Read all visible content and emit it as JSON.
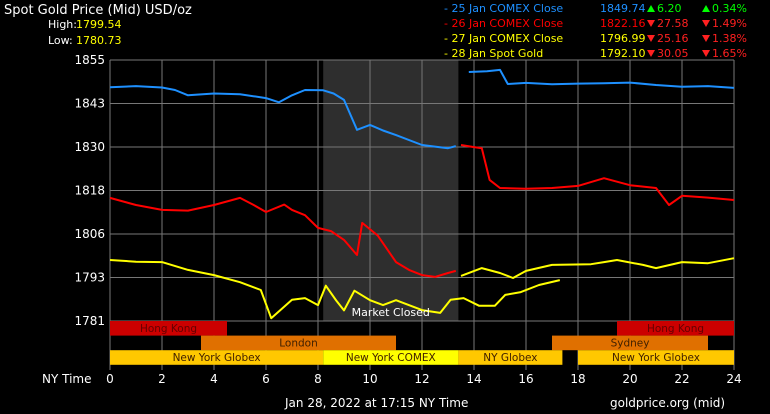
{
  "header": {
    "title": "Spot Gold Price (Mid) USD/oz",
    "high_label": "High:",
    "high_value": "1799.54",
    "low_label": "Low:",
    "low_value": "1780.73"
  },
  "legend": [
    {
      "label": "- 25 Jan COMEX Close",
      "price": "1849.74",
      "change": "6.20",
      "pct": "0.34%",
      "direction": "up",
      "color": "#1e90ff"
    },
    {
      "label": "- 26 Jan COMEX Close",
      "price": "1822.16",
      "change": "27.58",
      "pct": "1.49%",
      "direction": "down",
      "color": "#ff0000"
    },
    {
      "label": "- 27 Jan COMEX Close",
      "price": "1796.99",
      "change": "25.16",
      "pct": "1.38%",
      "direction": "down",
      "color": "#ffff00"
    },
    {
      "label": "- 28 Jan Spot Gold",
      "price": "1792.10",
      "change": "30.05",
      "pct": "1.65%",
      "direction": "down",
      "color": "#ffff00"
    }
  ],
  "footer": {
    "timestamp": "Jan 28, 2022 at 17:15 NY Time",
    "source": "goldprice.org (mid)"
  },
  "chart_data": {
    "type": "line",
    "xlabel": "NY Time",
    "xlim": [
      0,
      24
    ],
    "ylim": [
      1781,
      1855
    ],
    "x_ticks": [
      "0",
      "2",
      "4",
      "6",
      "8",
      "10",
      "12",
      "14",
      "16",
      "18",
      "20",
      "22",
      "24"
    ],
    "y_ticks": [
      "1855",
      "1843",
      "1830",
      "1818",
      "1806",
      "1793",
      "1781"
    ],
    "grid": true,
    "closed_label": "Market Closed",
    "closed_range": [
      8.2,
      13.4
    ],
    "series": [
      {
        "name": "25 Jan COMEX Close",
        "color": "#1e90ff",
        "segments": [
          [
            [
              0,
              1847.3
            ],
            [
              1,
              1847.6
            ],
            [
              2,
              1847.2
            ],
            [
              2.5,
              1846.5
            ],
            [
              3,
              1845
            ],
            [
              4,
              1845.5
            ],
            [
              5,
              1845.3
            ],
            [
              6,
              1844.2
            ],
            [
              6.5,
              1843
            ],
            [
              7,
              1845
            ],
            [
              7.5,
              1846.5
            ],
            [
              8.2,
              1846.4
            ],
            [
              8.6,
              1845.5
            ],
            [
              9,
              1843.7
            ],
            [
              9.5,
              1835.2
            ],
            [
              10,
              1836.6
            ],
            [
              10.5,
              1835
            ],
            [
              11,
              1833.7
            ],
            [
              12,
              1830.9
            ],
            [
              13,
              1830
            ],
            [
              13.3,
              1830.6
            ]
          ],
          [
            [
              13.8,
              1851.6
            ],
            [
              14.5,
              1851.8
            ],
            [
              15,
              1852.2
            ],
            [
              15.3,
              1848.2
            ],
            [
              16,
              1848.5
            ],
            [
              17,
              1848.1
            ],
            [
              18,
              1848.3
            ],
            [
              19,
              1848.4
            ],
            [
              20,
              1848.6
            ],
            [
              21,
              1847.9
            ],
            [
              22,
              1847.4
            ],
            [
              23,
              1847.6
            ],
            [
              24,
              1847.1
            ]
          ]
        ]
      },
      {
        "name": "26 Jan COMEX Close",
        "color": "#ff0000",
        "segments": [
          [
            [
              0,
              1815.9
            ],
            [
              1,
              1813.9
            ],
            [
              2,
              1812.5
            ],
            [
              3,
              1812.3
            ],
            [
              4,
              1813.9
            ],
            [
              5,
              1815.9
            ],
            [
              5.5,
              1814
            ],
            [
              6,
              1811.9
            ],
            [
              6.7,
              1814
            ],
            [
              7,
              1812.5
            ],
            [
              7.5,
              1811
            ],
            [
              8,
              1807.4
            ],
            [
              8.5,
              1806.5
            ],
            [
              9,
              1804
            ],
            [
              9.5,
              1799.7
            ],
            [
              9.7,
              1808.8
            ],
            [
              10.3,
              1805.2
            ],
            [
              11,
              1797.7
            ],
            [
              11.5,
              1795.5
            ],
            [
              12,
              1794
            ],
            [
              12.5,
              1793.5
            ],
            [
              13,
              1794.6
            ],
            [
              13.3,
              1795.2
            ]
          ],
          [
            [
              13.5,
              1830.9
            ],
            [
              14,
              1830.3
            ],
            [
              14.3,
              1830
            ],
            [
              14.6,
              1821
            ],
            [
              15,
              1818.7
            ],
            [
              16,
              1818.5
            ],
            [
              17,
              1818.7
            ],
            [
              18,
              1819.3
            ],
            [
              19,
              1821.5
            ],
            [
              20,
              1819.5
            ],
            [
              21,
              1818.7
            ],
            [
              21.5,
              1813.9
            ],
            [
              22,
              1816.5
            ],
            [
              23,
              1816
            ],
            [
              24,
              1815.3
            ]
          ]
        ]
      },
      {
        "name": "27 Jan COMEX Close",
        "color": "#ffff00",
        "segments": [
          [
            [
              13.5,
              1793.8
            ],
            [
              14.3,
              1796
            ],
            [
              15,
              1794.6
            ],
            [
              15.5,
              1793.2
            ],
            [
              16,
              1795.2
            ],
            [
              17,
              1796.9
            ],
            [
              18.5,
              1797.1
            ],
            [
              19,
              1797.7
            ],
            [
              19.5,
              1798.3
            ],
            [
              20.5,
              1796.9
            ],
            [
              21,
              1796
            ],
            [
              22,
              1797.7
            ],
            [
              23,
              1797.4
            ],
            [
              24,
              1798.8
            ]
          ]
        ]
      },
      {
        "name": "28 Jan Spot Gold",
        "color": "#ffff00",
        "segments": [
          [
            [
              0,
              1798.3
            ],
            [
              1,
              1797.8
            ],
            [
              2,
              1797.7
            ],
            [
              3,
              1795.5
            ],
            [
              4,
              1794
            ],
            [
              5,
              1792
            ],
            [
              5.8,
              1789.8
            ],
            [
              6.2,
              1781.8
            ],
            [
              7,
              1787
            ],
            [
              7.5,
              1787.5
            ],
            [
              8,
              1785.5
            ],
            [
              8.3,
              1791
            ],
            [
              8.7,
              1786.8
            ],
            [
              9,
              1784
            ],
            [
              9.4,
              1789.6
            ],
            [
              10,
              1786.9
            ],
            [
              10.5,
              1785.5
            ],
            [
              11,
              1786.9
            ],
            [
              12,
              1784.1
            ],
            [
              12.7,
              1783.3
            ],
            [
              13.1,
              1787
            ],
            [
              13.6,
              1787.5
            ],
            [
              14.2,
              1785.3
            ],
            [
              14.8,
              1785.3
            ],
            [
              15.2,
              1788.4
            ],
            [
              15.8,
              1789.2
            ],
            [
              16.5,
              1791.2
            ],
            [
              17.3,
              1792.6
            ]
          ]
        ]
      }
    ],
    "sessions": [
      {
        "label": "Hong Kong",
        "row": 0,
        "start": 0,
        "end": 4.5,
        "color": "#cc0000"
      },
      {
        "label": "Hong Kong",
        "row": 0,
        "start": 19.5,
        "end": 24,
        "color": "#cc0000"
      },
      {
        "label": "London",
        "row": 1,
        "start": 3.5,
        "end": 11,
        "color": "#e07000"
      },
      {
        "label": "Sydney",
        "row": 1,
        "start": 17,
        "end": 23,
        "color": "#e07000"
      },
      {
        "label": "New York Globex",
        "row": 2,
        "start": 0,
        "end": 8.2,
        "color": "#ffc800"
      },
      {
        "label": "New York COMEX",
        "row": 2,
        "start": 8.2,
        "end": 13.4,
        "color": "#ffff00"
      },
      {
        "label": "NY Globex",
        "row": 2,
        "start": 13.4,
        "end": 17.4,
        "color": "#ffc800"
      },
      {
        "label": "New York Globex",
        "row": 2,
        "start": 18,
        "end": 24,
        "color": "#ffc800"
      }
    ]
  }
}
